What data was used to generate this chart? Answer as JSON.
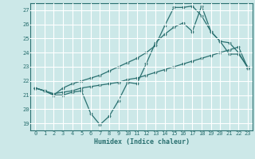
{
  "xlabel": "Humidex (Indice chaleur)",
  "bg_color": "#cce8e8",
  "grid_color": "#ffffff",
  "line_color": "#2a7070",
  "xlim": [
    -0.5,
    23.5
  ],
  "ylim": [
    18.5,
    27.5
  ],
  "xticks": [
    0,
    1,
    2,
    3,
    4,
    5,
    6,
    7,
    8,
    9,
    10,
    11,
    12,
    13,
    14,
    15,
    16,
    17,
    18,
    19,
    20,
    21,
    22,
    23
  ],
  "yticks": [
    19,
    20,
    21,
    22,
    23,
    24,
    25,
    26,
    27
  ],
  "line1_x": [
    0,
    1,
    2,
    3,
    4,
    5,
    6,
    7,
    8,
    9,
    10,
    11,
    12,
    13,
    14,
    15,
    16,
    17,
    18,
    19,
    20,
    21,
    22,
    23
  ],
  "line1_y": [
    21.5,
    21.3,
    21.0,
    21.0,
    21.2,
    21.3,
    19.7,
    18.9,
    19.5,
    20.6,
    21.9,
    21.8,
    23.2,
    24.7,
    25.3,
    25.8,
    26.1,
    25.5,
    27.3,
    25.5,
    24.8,
    23.9,
    23.9,
    23.0
  ],
  "line2_x": [
    0,
    1,
    2,
    3,
    4,
    5,
    6,
    7,
    8,
    9,
    10,
    11,
    12,
    13,
    14,
    15,
    16,
    17,
    18,
    19,
    20,
    21,
    22,
    23
  ],
  "line2_y": [
    21.5,
    21.3,
    21.1,
    21.2,
    21.3,
    21.5,
    21.6,
    21.7,
    21.8,
    21.9,
    22.1,
    22.2,
    22.4,
    22.6,
    22.8,
    23.0,
    23.2,
    23.4,
    23.6,
    23.8,
    24.0,
    24.2,
    24.4,
    22.9
  ],
  "line3_x": [
    0,
    1,
    2,
    3,
    4,
    5,
    6,
    7,
    8,
    9,
    10,
    11,
    12,
    13,
    14,
    15,
    16,
    17,
    18,
    19,
    20,
    21,
    22,
    23
  ],
  "line3_y": [
    21.5,
    21.3,
    21.0,
    21.5,
    21.8,
    22.0,
    22.2,
    22.4,
    22.7,
    23.0,
    23.3,
    23.6,
    24.0,
    24.5,
    25.9,
    27.2,
    27.2,
    27.3,
    26.6,
    25.5,
    24.8,
    24.7,
    24.0,
    22.9
  ]
}
